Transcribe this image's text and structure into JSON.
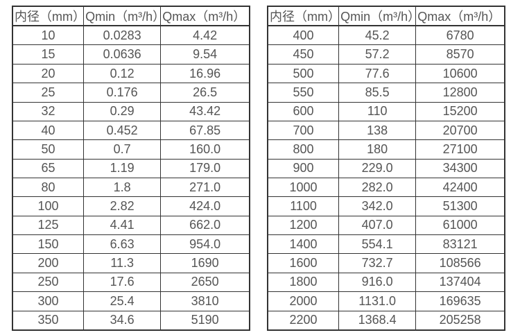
{
  "page": {
    "background": "#ffffff",
    "border_color": "#333333",
    "text_color": "#555555"
  },
  "tables": [
    {
      "name": "small-diameters",
      "headers": [
        "内径（mm）",
        "Qmin（m³/h）",
        "Qmax（m³/h）"
      ],
      "rows": [
        [
          "10",
          "0.0283",
          "4.42"
        ],
        [
          "15",
          "0.0636",
          "9.54"
        ],
        [
          "20",
          "0.12",
          "16.96"
        ],
        [
          "25",
          "0.176",
          "26.5"
        ],
        [
          "32",
          "0.29",
          "43.42"
        ],
        [
          "40",
          "0.452",
          "67.85"
        ],
        [
          "50",
          "0.7",
          "160.0"
        ],
        [
          "65",
          "1.19",
          "179.0"
        ],
        [
          "80",
          "1.8",
          "271.0"
        ],
        [
          "100",
          "2.82",
          "424.0"
        ],
        [
          "125",
          "4.41",
          "662.0"
        ],
        [
          "150",
          "6.63",
          "954.0"
        ],
        [
          "200",
          "11.3",
          "1690"
        ],
        [
          "250",
          "17.6",
          "2650"
        ],
        [
          "300",
          "25.4",
          "3810"
        ],
        [
          "350",
          "34.6",
          "5190"
        ]
      ]
    },
    {
      "name": "large-diameters",
      "headers": [
        "内径（mm）",
        "Qmin（m³/h）",
        "Qmax（m³/h）"
      ],
      "rows": [
        [
          "400",
          "45.2",
          "6780"
        ],
        [
          "450",
          "57.2",
          "8570"
        ],
        [
          "500",
          "77.6",
          "10600"
        ],
        [
          "550",
          "85.5",
          "12800"
        ],
        [
          "600",
          "110",
          "15200"
        ],
        [
          "700",
          "138",
          "20700"
        ],
        [
          "800",
          "180",
          "27100"
        ],
        [
          "900",
          "229.0",
          "34300"
        ],
        [
          "1000",
          "282.0",
          "42400"
        ],
        [
          "1100",
          "342.0",
          "51300"
        ],
        [
          "1200",
          "407.0",
          "61000"
        ],
        [
          "1400",
          "554.1",
          "83121"
        ],
        [
          "1600",
          "732.7",
          "108566"
        ],
        [
          "1800",
          "916.0",
          "137404"
        ],
        [
          "2000",
          "1131.0",
          "169635"
        ],
        [
          "2200",
          "1368.4",
          "205258"
        ]
      ]
    }
  ]
}
